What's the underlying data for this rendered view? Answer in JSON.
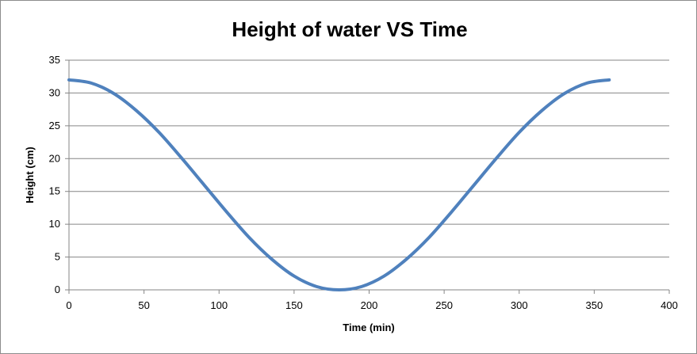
{
  "chart_data": {
    "type": "line",
    "title": "Height of water VS Time",
    "xlabel": "Time (min)",
    "ylabel": "Height (cm)",
    "xlim": [
      0,
      400
    ],
    "ylim": [
      0,
      35
    ],
    "xticks": [
      0,
      50,
      100,
      150,
      200,
      250,
      300,
      350,
      400
    ],
    "yticks": [
      0,
      5,
      10,
      15,
      20,
      25,
      30,
      35
    ],
    "grid": "horizontal",
    "legend": "none",
    "colors": {
      "line": "#4f81bd",
      "grid": "#868686",
      "axis": "#868686"
    },
    "series": [
      {
        "x": [
          0,
          15,
          30,
          45,
          60,
          75,
          90,
          105,
          120,
          135,
          150,
          165,
          180,
          195,
          210,
          225,
          240,
          255,
          270,
          285,
          300,
          315,
          330,
          345,
          360
        ],
        "y": [
          32.0,
          31.5,
          29.9,
          27.3,
          24.0,
          20.1,
          16.0,
          11.9,
          8.0,
          4.7,
          2.1,
          0.5,
          0.0,
          0.5,
          2.1,
          4.7,
          8.0,
          11.9,
          16.0,
          20.1,
          24.0,
          27.3,
          29.9,
          31.5,
          32.0
        ]
      }
    ]
  }
}
